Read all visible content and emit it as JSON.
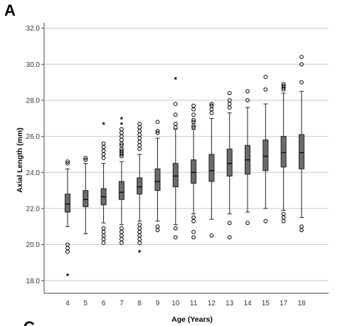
{
  "panel_label": "A",
  "chart_data": {
    "type": "boxplot",
    "title": "",
    "xlabel": "Age (Years)",
    "ylabel": "Axial Length (mm)",
    "ylim": [
      17.3,
      32.3
    ],
    "yticks": [
      "18.0",
      "20.0",
      "22.0",
      "24.0",
      "26.0",
      "28.0",
      "30.0",
      "32.0"
    ],
    "grid": true,
    "categories": [
      "4",
      "5",
      "6",
      "7",
      "8",
      "9",
      "10",
      "11",
      "12",
      "13",
      "14",
      "15",
      "17",
      "18"
    ],
    "boxes": [
      {
        "age": "4",
        "min": 21.0,
        "q1": 21.8,
        "median": 22.25,
        "q3": 22.8,
        "max": 24.2,
        "outliers": [
          24.5,
          24.6,
          20.0,
          19.8,
          19.6
        ],
        "extremes": [
          18.3
        ]
      },
      {
        "age": "5",
        "min": 20.6,
        "q1": 22.1,
        "median": 22.5,
        "q3": 23.0,
        "max": 24.5,
        "outliers": [
          24.7,
          24.8
        ],
        "extremes": []
      },
      {
        "age": "6",
        "min": 21.2,
        "q1": 22.2,
        "median": 22.65,
        "q3": 23.1,
        "max": 24.5,
        "outliers": [
          24.8,
          25.0,
          25.2,
          25.4,
          25.6,
          20.9,
          20.7,
          20.5,
          20.3,
          20.1
        ],
        "extremes": [
          26.7
        ]
      },
      {
        "age": "7",
        "min": 21.1,
        "q1": 22.5,
        "median": 22.9,
        "q3": 23.5,
        "max": 24.6,
        "outliers": [
          24.9,
          25.0,
          25.1,
          25.2,
          25.3,
          25.5,
          25.6,
          25.8,
          26.0,
          26.2,
          26.4,
          20.9,
          20.7,
          20.5,
          20.3,
          20.1
        ],
        "extremes": [
          27.0,
          26.7
        ]
      },
      {
        "age": "8",
        "min": 21.3,
        "q1": 22.8,
        "median": 23.2,
        "q3": 23.7,
        "max": 25.0,
        "outliers": [
          25.3,
          25.5,
          25.7,
          25.9,
          26.1,
          26.3,
          26.5,
          26.7,
          21.1,
          20.9,
          20.7,
          20.5,
          20.3,
          20.1
        ],
        "extremes": [
          19.6
        ]
      },
      {
        "age": "9",
        "min": 21.3,
        "q1": 23.0,
        "median": 23.5,
        "q3": 24.2,
        "max": 25.9,
        "outliers": [
          26.2,
          26.3,
          26.8,
          21.0,
          20.8
        ],
        "extremes": []
      },
      {
        "age": "10",
        "min": 21.1,
        "q1": 23.2,
        "median": 23.8,
        "q3": 24.5,
        "max": 26.4,
        "outliers": [
          26.5,
          26.7,
          27.2,
          27.8,
          20.9,
          20.4
        ],
        "extremes": [
          29.2
        ]
      },
      {
        "age": "11",
        "min": 21.7,
        "q1": 23.4,
        "median": 24.0,
        "q3": 24.7,
        "max": 26.4,
        "outliers": [
          26.5,
          26.6,
          26.8,
          26.9,
          27.2,
          27.5,
          27.7,
          21.5,
          21.3,
          20.7,
          20.4
        ],
        "extremes": []
      },
      {
        "age": "12",
        "min": 21.4,
        "q1": 23.5,
        "median": 24.1,
        "q3": 25.0,
        "max": 27.0,
        "outliers": [
          27.3,
          27.5,
          27.7,
          27.8,
          20.5
        ],
        "extremes": []
      },
      {
        "age": "13",
        "min": 21.7,
        "q1": 23.8,
        "median": 24.5,
        "q3": 25.3,
        "max": 27.3,
        "outliers": [
          27.6,
          27.8,
          28.0,
          28.4,
          21.2,
          20.4
        ],
        "extremes": []
      },
      {
        "age": "14",
        "min": 21.8,
        "q1": 23.9,
        "median": 24.7,
        "q3": 25.5,
        "max": 27.6,
        "outliers": [
          28.0,
          28.5,
          21.2
        ],
        "extremes": []
      },
      {
        "age": "15",
        "min": 22.0,
        "q1": 24.1,
        "median": 24.9,
        "q3": 25.8,
        "max": 27.8,
        "outliers": [
          28.6,
          29.3,
          21.3
        ],
        "extremes": []
      },
      {
        "age": "17",
        "min": 21.9,
        "q1": 24.3,
        "median": 25.1,
        "q3": 26.0,
        "max": 28.4,
        "outliers": [
          28.6,
          28.7,
          28.8,
          28.9,
          21.7,
          21.5,
          21.3
        ],
        "extremes": []
      },
      {
        "age": "18",
        "min": 21.5,
        "q1": 24.2,
        "median": 25.1,
        "q3": 26.1,
        "max": 28.5,
        "outliers": [
          29.0,
          30.0,
          30.4,
          21.0,
          20.8
        ],
        "extremes": []
      }
    ]
  },
  "next_panel_fragment": "C"
}
